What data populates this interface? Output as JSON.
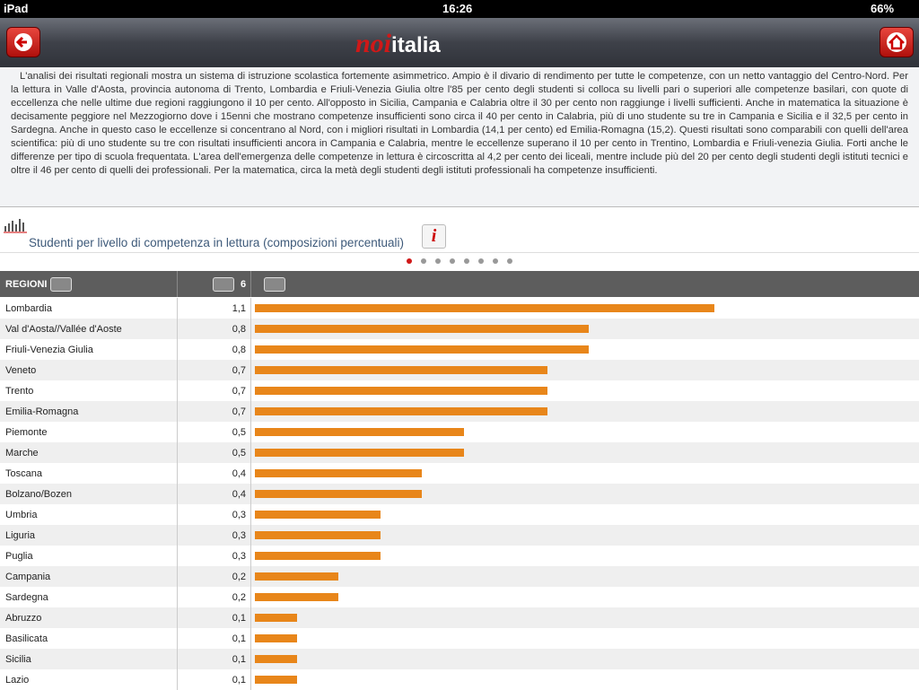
{
  "status_bar": {
    "device": "iPad",
    "time": "16:26",
    "battery": "66%"
  },
  "header": {
    "logo_script": "noi",
    "logo_bold": "italia"
  },
  "summary": "L'analisi dei risultati regionali mostra un sistema di istruzione scolastica fortemente asimmetrico. Ampio è il divario di rendimento per tutte le competenze, con un netto vantaggio del Centro-Nord. Per la lettura in Valle d'Aosta, provincia autonoma di Trento, Lombardia e Friuli-Venezia Giulia oltre l'85 per cento degli studenti si colloca su livelli pari o superiori alle competenze basilari, con quote di eccellenza che nelle ultime due regioni raggiungono il 10 per cento. All'opposto in Sicilia, Campania e Calabria oltre il 30 per cento non raggiunge i livelli sufficienti. Anche in matematica la situazione è decisamente peggiore nel Mezzogiorno dove i 15enni che mostrano competenze insufficienti sono circa il 40 per cento in Calabria, più di uno studente su tre in Campania e Sicilia e il 32,5 per cento in Sardegna. Anche in questo caso le eccellenze si concentrano al Nord, con i migliori risultati in Lombardia (14,1 per cento) ed Emilia-Romagna (15,2). Questi risultati sono comparabili con quelli dell'area scientifica: più di uno studente su tre con risultati insufficienti ancora in Campania e Calabria, mentre le eccellenze superano il 10 per cento in Trentino, Lombardia e Friuli-venezia Giulia. Forti anche le differenze per tipo di scuola frequentata. L'area dell'emergenza delle competenze in lettura è circoscritta al 4,2 per cento dei liceali, mentre include più del 20 per cento degli studenti degli istituti tecnici e oltre il 46 per cento di quelli dei professionali. Per la matematica, circa la metà degli studenti degli istituti professionali ha competenze insufficienti.",
  "chart_title": "Studenti per livello di competenza in lettura (composizioni percentuali)",
  "info_button": "i",
  "table": {
    "columns": [
      "REGIONI",
      "6"
    ],
    "rows": [
      {
        "region": "Lombardia",
        "value": 1.1,
        "label": "1,1"
      },
      {
        "region": "Val d'Aosta//Vallée d'Aoste",
        "value": 0.8,
        "label": "0,8"
      },
      {
        "region": "Friuli-Venezia Giulia",
        "value": 0.8,
        "label": "0,8"
      },
      {
        "region": "Veneto",
        "value": 0.7,
        "label": "0,7"
      },
      {
        "region": "Trento",
        "value": 0.7,
        "label": "0,7"
      },
      {
        "region": "Emilia-Romagna",
        "value": 0.7,
        "label": "0,7"
      },
      {
        "region": "Piemonte",
        "value": 0.5,
        "label": "0,5"
      },
      {
        "region": "Marche",
        "value": 0.5,
        "label": "0,5"
      },
      {
        "region": "Toscana",
        "value": 0.4,
        "label": "0,4"
      },
      {
        "region": "Bolzano/Bozen",
        "value": 0.4,
        "label": "0,4"
      },
      {
        "region": "Umbria",
        "value": 0.3,
        "label": "0,3"
      },
      {
        "region": "Liguria",
        "value": 0.3,
        "label": "0,3"
      },
      {
        "region": "Puglia",
        "value": 0.3,
        "label": "0,3"
      },
      {
        "region": "Campania",
        "value": 0.2,
        "label": "0,2"
      },
      {
        "region": "Sardegna",
        "value": 0.2,
        "label": "0,2"
      },
      {
        "region": "Abruzzo",
        "value": 0.1,
        "label": "0,1"
      },
      {
        "region": "Basilicata",
        "value": 0.1,
        "label": "0,1"
      },
      {
        "region": "Sicilia",
        "value": 0.1,
        "label": "0,1"
      },
      {
        "region": "Lazio",
        "value": 0.1,
        "label": "0,1"
      }
    ]
  }
}
